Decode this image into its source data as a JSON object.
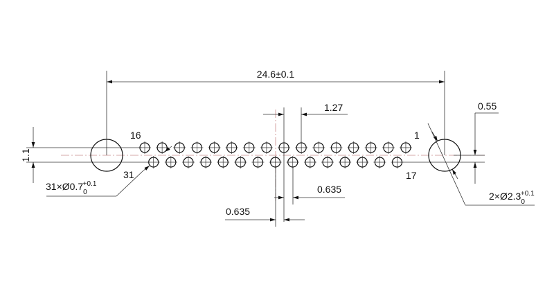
{
  "dimensions": {
    "overall_span": "24.6±0.1",
    "pitch": "1.27",
    "row_offset_upper": "0.635",
    "row_offset_lower": "0.635",
    "center_offset": "0.55",
    "row_spacing": "1.1"
  },
  "callouts": {
    "pin_holes": {
      "prefix": "31×Ø0.7",
      "upper_tol": "+0.1",
      "lower_tol": "0"
    },
    "mount_holes": {
      "prefix": "2×Ø2.3",
      "upper_tol": "+0.1",
      "lower_tol": "0"
    }
  },
  "pin_labels": {
    "top_left": "16",
    "bottom_left": "31",
    "top_right": "1",
    "bottom_right": "17"
  },
  "pins": {
    "top_row_count": 16,
    "bottom_row_count": 15
  },
  "colors": {
    "line": "#333333",
    "centerline": "#c98a8a"
  }
}
